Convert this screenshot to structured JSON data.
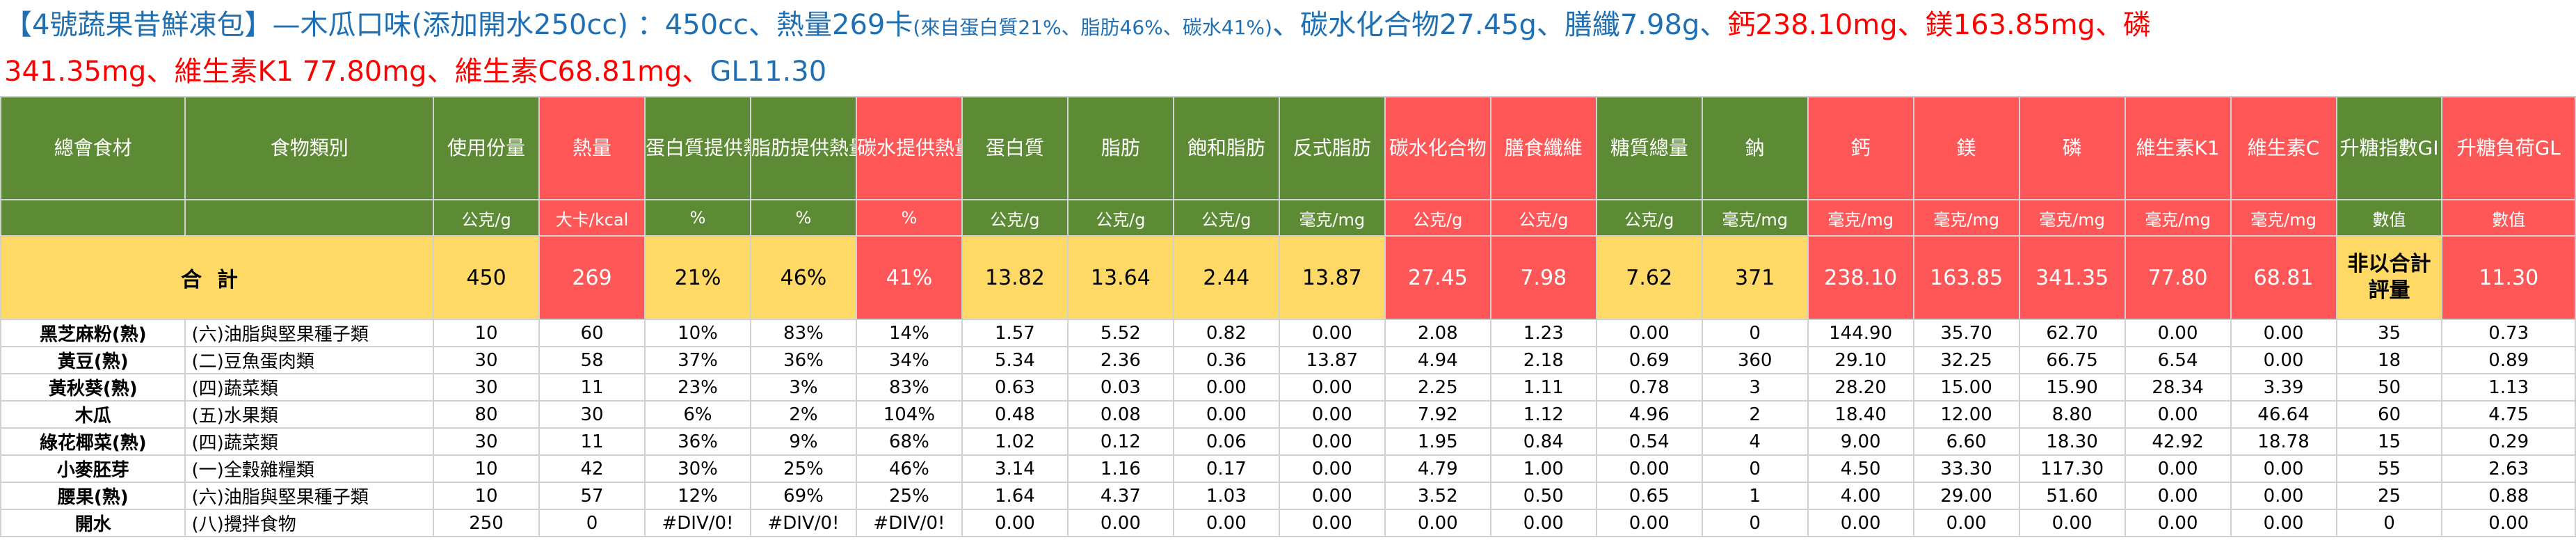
{
  "title": {
    "segments": [
      {
        "text": "【4號蔬果昔鮮凍包】—木瓜口味(添加開水250cc) ：450cc、熱量269卡",
        "color": "blue"
      },
      {
        "text": "(來自蛋白質21%、脂肪46%、碳水41%)",
        "color": "blue",
        "small": true
      },
      {
        "text": "、碳水化合物27.45g、膳纖7.98g、",
        "color": "blue"
      },
      {
        "text": "鈣238.10mg、鎂163.85mg、磷",
        "color": "red"
      }
    ],
    "line2_segments": [
      {
        "text": "341.35mg、維生素K1 77.80mg、維生素C68.81mg、",
        "color": "red"
      },
      {
        "text": "GL11.30",
        "color": "blue"
      }
    ]
  },
  "table": {
    "headers": [
      "總會食材",
      "食物類別",
      "使用份量",
      "熱量",
      "蛋白質提供熱量",
      "脂肪提供熱量",
      "碳水提供熱量",
      "蛋白質",
      "脂肪",
      "飽和脂肪",
      "反式脂肪",
      "碳水化合物",
      "膳食纖維",
      "糖質總量",
      "鈉",
      "鈣",
      "鎂",
      "磷",
      "維生素K1",
      "維生素C",
      "升糖指數GI",
      "升糖負荷GL"
    ],
    "header_colors": [
      "g",
      "g",
      "g",
      "r",
      "g",
      "g",
      "r",
      "g",
      "g",
      "g",
      "g",
      "r",
      "r",
      "g",
      "g",
      "r",
      "r",
      "r",
      "r",
      "r",
      "g",
      "r"
    ],
    "units": [
      "",
      "",
      "公克/g",
      "大卡/kcal",
      "%",
      "%",
      "%",
      "公克/g",
      "公克/g",
      "公克/g",
      "毫克/mg",
      "公克/g",
      "公克/g",
      "公克/g",
      "毫克/mg",
      "毫克/mg",
      "毫克/mg",
      "毫克/mg",
      "毫克/mg",
      "毫克/mg",
      "數值",
      "數值"
    ],
    "total": {
      "label": "合計",
      "values": [
        "450",
        "269",
        "21%",
        "46%",
        "41%",
        "13.82",
        "13.64",
        "2.44",
        "13.87",
        "27.45",
        "7.98",
        "7.62",
        "371",
        "238.10",
        "163.85",
        "341.35",
        "77.80",
        "68.81",
        "非以合計評量",
        "11.30"
      ]
    },
    "rows": [
      {
        "name": "黑芝麻粉(熟)",
        "category": "(六)油脂與堅果種子類",
        "values": [
          "10",
          "60",
          "10%",
          "83%",
          "14%",
          "1.57",
          "5.52",
          "0.82",
          "0.00",
          "2.08",
          "1.23",
          "0.00",
          "0",
          "144.90",
          "35.70",
          "62.70",
          "0.00",
          "0.00",
          "35",
          "0.73"
        ]
      },
      {
        "name": "黃豆(熟)",
        "category": "(二)豆魚蛋肉類",
        "values": [
          "30",
          "58",
          "37%",
          "36%",
          "34%",
          "5.34",
          "2.36",
          "0.36",
          "13.87",
          "4.94",
          "2.18",
          "0.69",
          "360",
          "29.10",
          "32.25",
          "66.75",
          "6.54",
          "0.00",
          "18",
          "0.89"
        ]
      },
      {
        "name": "黃秋葵(熟)",
        "category": "(四)蔬菜類",
        "values": [
          "30",
          "11",
          "23%",
          "3%",
          "83%",
          "0.63",
          "0.03",
          "0.00",
          "0.00",
          "2.25",
          "1.11",
          "0.78",
          "3",
          "28.20",
          "15.00",
          "15.90",
          "28.34",
          "3.39",
          "50",
          "1.13"
        ]
      },
      {
        "name": "木瓜",
        "category": "(五)水果類",
        "values": [
          "80",
          "30",
          "6%",
          "2%",
          "104%",
          "0.48",
          "0.08",
          "0.00",
          "0.00",
          "7.92",
          "1.12",
          "4.96",
          "2",
          "18.40",
          "12.00",
          "8.80",
          "0.00",
          "46.64",
          "60",
          "4.75"
        ]
      },
      {
        "name": "綠花椰菜(熟)",
        "category": "(四)蔬菜類",
        "values": [
          "30",
          "11",
          "36%",
          "9%",
          "68%",
          "1.02",
          "0.12",
          "0.06",
          "0.00",
          "1.95",
          "0.84",
          "0.54",
          "4",
          "9.00",
          "6.60",
          "18.30",
          "42.92",
          "18.78",
          "15",
          "0.29"
        ]
      },
      {
        "name": "小麥胚芽",
        "category": "(一)全穀雜糧類",
        "values": [
          "10",
          "42",
          "30%",
          "25%",
          "46%",
          "3.14",
          "1.16",
          "0.17",
          "0.00",
          "4.79",
          "1.00",
          "0.00",
          "0",
          "4.50",
          "33.30",
          "117.30",
          "0.00",
          "0.00",
          "55",
          "2.63"
        ]
      },
      {
        "name": "腰果(熟)",
        "category": "(六)油脂與堅果種子類",
        "values": [
          "10",
          "57",
          "12%",
          "69%",
          "25%",
          "1.64",
          "4.37",
          "1.03",
          "0.00",
          "3.52",
          "0.50",
          "0.65",
          "1",
          "4.00",
          "29.00",
          "51.60",
          "0.00",
          "0.00",
          "25",
          "0.88"
        ]
      },
      {
        "name": "開水",
        "category": "(八)攪拌食物",
        "values": [
          "250",
          "0",
          "#DIV/0!",
          "#DIV/0!",
          "#DIV/0!",
          "0.00",
          "0.00",
          "0.00",
          "0.00",
          "0.00",
          "0.00",
          "0.00",
          "0",
          "0.00",
          "0.00",
          "0.00",
          "0.00",
          "0.00",
          "0",
          "0.00"
        ]
      }
    ]
  }
}
